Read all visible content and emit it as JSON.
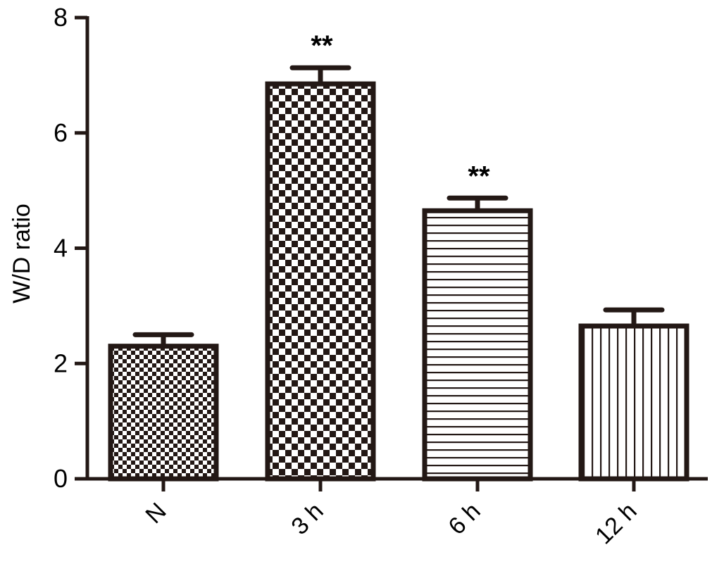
{
  "chart_data": {
    "type": "bar",
    "categories": [
      "N",
      "3 h",
      "6 h",
      "12 h"
    ],
    "values": [
      2.3,
      6.85,
      4.65,
      2.65
    ],
    "errors": [
      0.2,
      0.28,
      0.22,
      0.28
    ],
    "annotations": [
      "",
      "**",
      "**",
      ""
    ],
    "patterns": [
      "fine-checker",
      "checker",
      "horizontal-lines",
      "vertical-lines"
    ],
    "ylabel": "W/D ratio",
    "ylim": [
      0,
      8
    ],
    "yticks": [
      0,
      2,
      4,
      6,
      8
    ],
    "grid": false,
    "legend": "none",
    "colors": {
      "ink": "#231815",
      "text": "#000000",
      "fill": "#ffffff"
    }
  }
}
